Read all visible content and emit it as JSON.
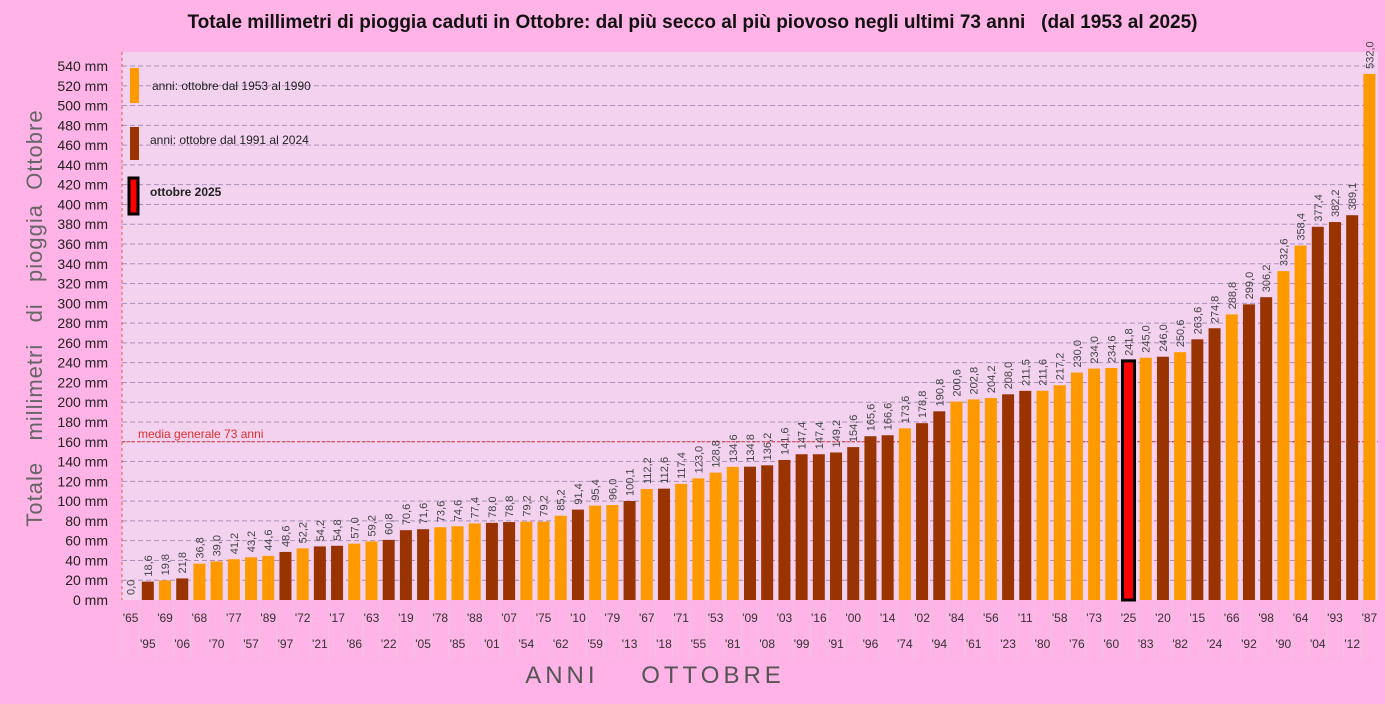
{
  "chart_data": {
    "type": "bar",
    "title": "Totale millimetri di pioggia caduti in Ottobre: dal più secco al più piovoso negli ultimi 73 anni   (dal 1953 al 2025)",
    "xlabel": "ANNI    OTTOBRE",
    "ylabel": "Totale   millimetri   di   pioggia  Ottobre",
    "ylim": [
      0,
      540
    ],
    "ytick_step": 20,
    "ytick_unit": "mm",
    "grid": true,
    "categories": [
      "'65",
      "'95",
      "'69",
      "'06",
      "'68",
      "'70",
      "'77",
      "'57",
      "'89",
      "'97",
      "'72",
      "'21",
      "'17",
      "'86",
      "'63",
      "'22",
      "'19",
      "'05",
      "'78",
      "'85",
      "'88",
      "'01",
      "'07",
      "'54",
      "'75",
      "'62",
      "'10",
      "'59",
      "'79",
      "'13",
      "'67",
      "'18",
      "'71",
      "'55",
      "'53",
      "'81",
      "'09",
      "'08",
      "'03",
      "'99",
      "'16",
      "'91",
      "'00",
      "'96",
      "'14",
      "'74",
      "'02",
      "'94",
      "'84",
      "'61",
      "'56",
      "'23",
      "'11",
      "'80",
      "'58",
      "'76",
      "'73",
      "'60",
      "'25",
      "'83",
      "'20",
      "'82",
      "'15",
      "'24",
      "'66",
      "'92",
      "'98",
      "'90",
      "'64",
      "'04",
      "'93",
      "'12",
      "'87"
    ],
    "values": [
      0.0,
      18.6,
      19.8,
      21.8,
      36.8,
      39.0,
      41.2,
      43.2,
      44.6,
      48.6,
      52.2,
      54.2,
      54.8,
      57.0,
      59.2,
      60.8,
      70.6,
      71.6,
      73.6,
      74.6,
      77.4,
      78.0,
      78.8,
      79.2,
      79.2,
      85.2,
      91.4,
      95.4,
      96.0,
      100.1,
      112.2,
      112.6,
      117.4,
      123.0,
      128.8,
      134.6,
      134.8,
      136.2,
      141.6,
      147.4,
      147.4,
      149.2,
      154.6,
      165.6,
      166.6,
      173.6,
      178.8,
      190.8,
      200.6,
      202.8,
      204.2,
      208.0,
      211.5,
      211.6,
      217.2,
      230.0,
      234.0,
      234.6,
      241.8,
      245.0,
      246.0,
      250.6,
      263.6,
      274.8,
      288.8,
      299.0,
      306.2,
      332.6,
      358.4,
      377.4,
      382.2,
      389.1,
      532.0
    ],
    "data_labels": [
      "0,0",
      "18,6",
      "19,8",
      "21,8",
      "36,8",
      "39,0",
      "41,2",
      "43,2",
      "44,6",
      "48,6",
      "52,2",
      "54,2",
      "54,8",
      "57,0",
      "59,2",
      "60,8",
      "70,6",
      "71,6",
      "73,6",
      "74,6",
      "77,4",
      "78,0",
      "78,8",
      "79,2",
      "79,2",
      "85,2",
      "91,4",
      "95,4",
      "96,0",
      "100,1",
      "112,2",
      "112,6",
      "117,4",
      "123,0",
      "128,8",
      "134,6",
      "134,8",
      "136,2",
      "141,6",
      "147,4",
      "147,4",
      "149,2",
      "154,6",
      "165,6",
      "166,6",
      "173,6",
      "178,8",
      "190,8",
      "200,6",
      "202,8",
      "204,2",
      "208,0",
      "211,5",
      "211,6",
      "217,2",
      "230,0",
      "234,0",
      "234,6",
      "241,8",
      "245,0",
      "246,0",
      "250,6",
      "263,6",
      "274,8",
      "288,8",
      "299,0",
      "306,2",
      "332,6",
      "358,4",
      "377,4",
      "382,2",
      "389,1",
      "532,0"
    ],
    "legend": [
      {
        "label": "anni:  ottobre  dal 1953 al 1990",
        "color": "#ff9900"
      },
      {
        "label": "anni:  ottobre  dal 1991 al 2024",
        "color": "#993300"
      },
      {
        "label": "ottobre 2025",
        "color": "#ff0000",
        "border": "#000000"
      }
    ],
    "legend_position": "top-left",
    "mean_line": {
      "value": 160,
      "label": "media generale 73 anni",
      "color": "#e03030"
    }
  },
  "colors": {
    "background": "#ffb3e6",
    "plot_background": "#f2d2ee"
  }
}
